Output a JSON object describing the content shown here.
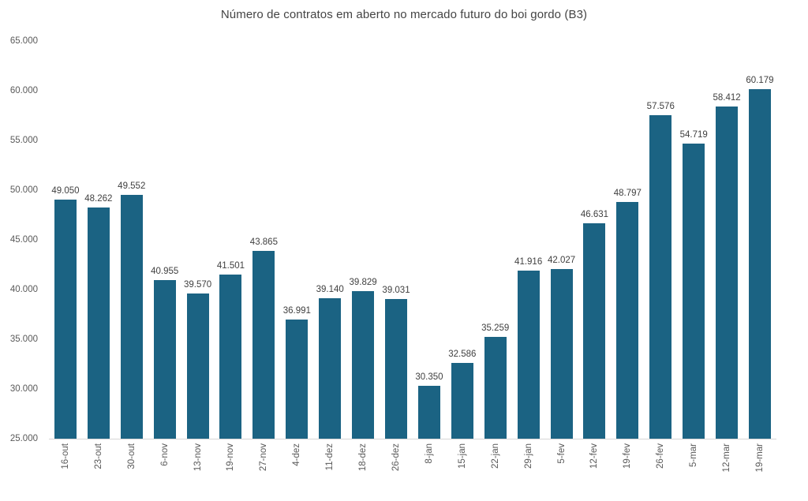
{
  "colors": {
    "bar": "#1b6383",
    "title_text": "#444444",
    "axis_text": "#595959",
    "value_label_text": "#404040",
    "axis_line": "#d6d6d6",
    "background": "#ffffff"
  },
  "chart_data": {
    "type": "bar",
    "title": "Número de contratos em aberto no mercado futuro do boi gordo (B3)",
    "xlabel": "",
    "ylabel": "",
    "ylim": [
      25000,
      65000
    ],
    "grid": false,
    "legend": false,
    "bar_color": "#1b6383",
    "categories": [
      "16-out",
      "23-out",
      "30-out",
      "6-nov",
      "13-nov",
      "19-nov",
      "27-nov",
      "4-dez",
      "11-dez",
      "18-dez",
      "26-dez",
      "8-jan",
      "15-jan",
      "22-jan",
      "29-jan",
      "5-fev",
      "12-fev",
      "19-fev",
      "26-fev",
      "5-mar",
      "12-mar",
      "19-mar"
    ],
    "values": [
      49050,
      48262,
      49552,
      40955,
      39570,
      41501,
      43865,
      36991,
      39140,
      39829,
      39031,
      30350,
      32586,
      35259,
      41916,
      42027,
      46631,
      48797,
      57576,
      54719,
      58412,
      60179
    ],
    "value_labels": [
      "49.050",
      "48.262",
      "49.552",
      "40.955",
      "39.570",
      "41.501",
      "43.865",
      "36.991",
      "39.140",
      "39.829",
      "39.031",
      "30.350",
      "32.586",
      "35.259",
      "41.916",
      "42.027",
      "46.631",
      "48.797",
      "57.576",
      "54.719",
      "58.412",
      "60.179"
    ],
    "y_tick_values": [
      65000,
      60000,
      55000,
      50000,
      45000,
      40000,
      35000,
      30000,
      25000
    ],
    "y_tick_labels": [
      "65.000",
      "60.000",
      "55.000",
      "50.000",
      "45.000",
      "40.000",
      "35.000",
      "30.000",
      "25.000"
    ]
  }
}
